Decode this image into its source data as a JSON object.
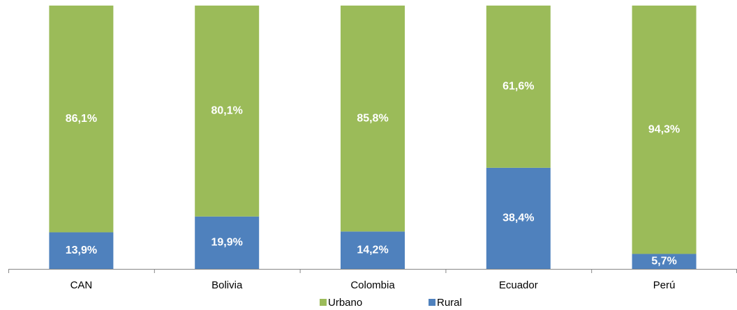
{
  "chart_data": {
    "type": "bar",
    "stacked": true,
    "categories": [
      "CAN",
      "Bolivia",
      "Colombia",
      "Ecuador",
      "Perú"
    ],
    "series": [
      {
        "name": "Urbano",
        "color": "#9bbb59",
        "values": [
          86.1,
          80.1,
          85.8,
          61.6,
          94.3
        ],
        "value_labels": [
          "86,1%",
          "80,1%",
          "85,8%",
          "61,6%",
          "94,3%"
        ]
      },
      {
        "name": "Rural",
        "color": "#4f81bd",
        "values": [
          13.9,
          19.9,
          14.2,
          38.4,
          5.7
        ],
        "value_labels": [
          "13,9%",
          "19,9%",
          "14,2%",
          "38,4%",
          "5,7%"
        ]
      }
    ],
    "ylim": [
      0,
      100
    ],
    "legend": "bottom"
  }
}
